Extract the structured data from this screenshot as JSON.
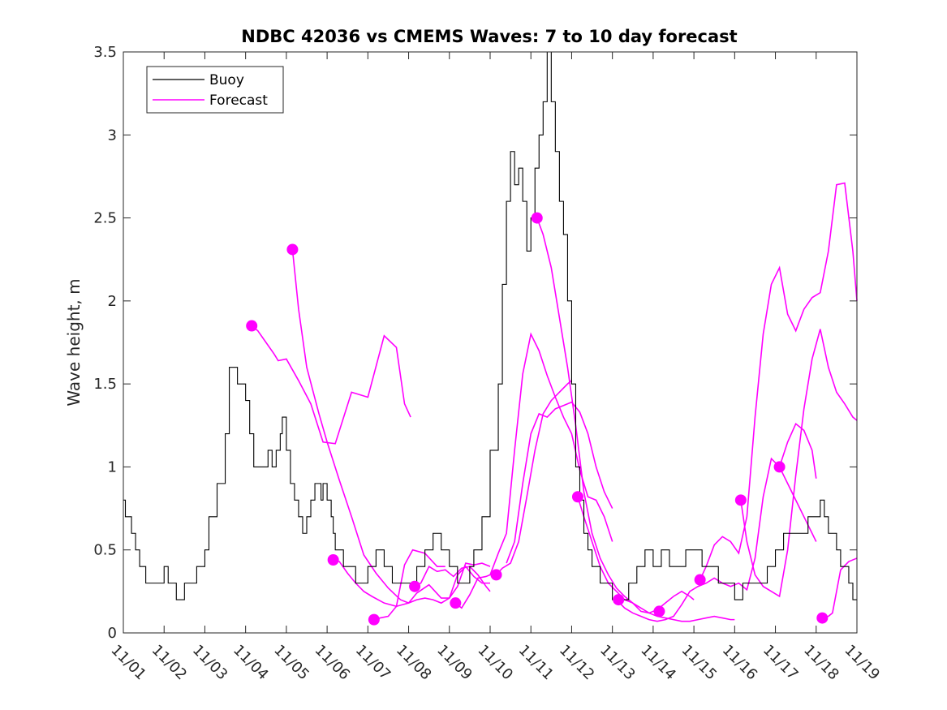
{
  "chart_data": {
    "type": "line",
    "title": "NDBC 42036 vs CMEMS Waves: 7 to 10 day forecast",
    "xlabel": "",
    "ylabel": "Wave height, m",
    "xlim": [
      0,
      18
    ],
    "ylim": [
      0,
      3.5
    ],
    "x_ticks": [
      0,
      1,
      2,
      3,
      4,
      5,
      6,
      7,
      8,
      9,
      10,
      11,
      12,
      13,
      14,
      15,
      16,
      17,
      18
    ],
    "x_tick_labels": [
      "11/01",
      "11/02",
      "11/03",
      "11/04",
      "11/05",
      "11/06",
      "11/07",
      "11/08",
      "11/09",
      "11/10",
      "11/11",
      "11/12",
      "11/13",
      "11/14",
      "11/15",
      "11/16",
      "11/17",
      "11/18",
      "11/19"
    ],
    "y_ticks": [
      0,
      0.5,
      1,
      1.5,
      2,
      2.5,
      3,
      3.5
    ],
    "y_tick_labels": [
      "0",
      "0.5",
      "1",
      "1.5",
      "2",
      "2.5",
      "3",
      "3.5"
    ],
    "legend": {
      "location": "top-left",
      "entries": [
        {
          "label": "Buoy",
          "color": "#000000"
        },
        {
          "label": "Forecast",
          "color": "#ff00ff"
        }
      ]
    },
    "colors": {
      "buoy": "#000000",
      "forecast": "#ff00ff",
      "axes": "#262626"
    },
    "buoy": {
      "name": "Buoy",
      "x": [
        0,
        0.05,
        0.1,
        0.2,
        0.3,
        0.35,
        0.4,
        0.5,
        0.55,
        0.6,
        0.7,
        0.8,
        1,
        1.1,
        1.3,
        1.5,
        1.6,
        1.8,
        2,
        2.1,
        2.3,
        2.5,
        2.6,
        2.8,
        3,
        3.1,
        3.2,
        3.3,
        3.4,
        3.5,
        3.55,
        3.6,
        3.65,
        3.7,
        3.75,
        3.8,
        3.85,
        3.9,
        4,
        4.1,
        4.2,
        4.3,
        4.4,
        4.5,
        4.6,
        4.7,
        4.75,
        4.8,
        4.85,
        4.9,
        5,
        5.1,
        5.15,
        5.2,
        5.3,
        5.4,
        5.5,
        5.6,
        5.7,
        5.8,
        5.9,
        6,
        6.1,
        6.2,
        6.4,
        6.6,
        6.8,
        7,
        7.2,
        7.4,
        7.6,
        7.8,
        8,
        8.2,
        8.4,
        8.5,
        8.6,
        8.8,
        9,
        9.2,
        9.3,
        9.4,
        9.5,
        9.6,
        9.7,
        9.8,
        9.9,
        10,
        10.1,
        10.2,
        10.3,
        10.4,
        10.5,
        10.6,
        10.7,
        10.8,
        10.9,
        11,
        11.1,
        11.2,
        11.3,
        11.4,
        11.5,
        11.6,
        11.7,
        11.8,
        11.9,
        12,
        12.2,
        12.4,
        12.6,
        12.8,
        13,
        13.2,
        13.4,
        13.6,
        13.8,
        14,
        14.2,
        14.4,
        14.6,
        14.8,
        15,
        15.2,
        15.4,
        15.6,
        15.8,
        16,
        16.2,
        16.4,
        16.6,
        16.8,
        17,
        17.1,
        17.2,
        17.3,
        17.4,
        17.5,
        17.6,
        17.7,
        17.8,
        17.9,
        18
      ],
      "values": [
        0.8,
        0.7,
        0.7,
        0.6,
        0.5,
        0.5,
        0.4,
        0.4,
        0.3,
        0.3,
        0.3,
        0.3,
        0.4,
        0.3,
        0.2,
        0.3,
        0.3,
        0.4,
        0.5,
        0.7,
        0.9,
        1.2,
        1.6,
        1.5,
        1.4,
        1.2,
        1.0,
        1.0,
        1.0,
        1.0,
        1.1,
        1.1,
        1.0,
        1.0,
        1.1,
        1.1,
        1.2,
        1.3,
        1.1,
        0.9,
        0.8,
        0.7,
        0.6,
        0.7,
        0.8,
        0.9,
        0.9,
        0.9,
        0.8,
        0.9,
        0.8,
        0.7,
        0.6,
        0.5,
        0.5,
        0.4,
        0.4,
        0.4,
        0.3,
        0.3,
        0.3,
        0.4,
        0.4,
        0.5,
        0.4,
        0.3,
        0.3,
        0.3,
        0.4,
        0.5,
        0.6,
        0.5,
        0.4,
        0.3,
        0.3,
        0.4,
        0.5,
        0.7,
        1.1,
        1.5,
        2.1,
        2.6,
        2.9,
        2.7,
        2.8,
        2.6,
        2.3,
        2.5,
        2.8,
        3.0,
        3.2,
        3.5,
        3.2,
        2.9,
        2.6,
        2.4,
        2.0,
        1.5,
        1.0,
        0.8,
        0.6,
        0.5,
        0.4,
        0.4,
        0.3,
        0.3,
        0.3,
        0.2,
        0.2,
        0.3,
        0.4,
        0.5,
        0.4,
        0.5,
        0.4,
        0.4,
        0.5,
        0.5,
        0.4,
        0.4,
        0.3,
        0.3,
        0.2,
        0.3,
        0.3,
        0.3,
        0.4,
        0.5,
        0.6,
        0.6,
        0.6,
        0.7,
        0.7,
        0.8,
        0.7,
        0.6,
        0.6,
        0.5,
        0.4,
        0.4,
        0.3,
        0.2,
        0.2
      ]
    },
    "forecasts": [
      {
        "name": "Forecast",
        "x": [
          3.15,
          3.3,
          3.5,
          3.7,
          3.8,
          4.0,
          4.3,
          4.6,
          4.9,
          5.2,
          5.6,
          6.0,
          6.4,
          6.7,
          6.9,
          7.05
        ],
        "values": [
          1.85,
          1.82,
          1.75,
          1.68,
          1.64,
          1.65,
          1.52,
          1.38,
          1.15,
          1.14,
          1.45,
          1.42,
          1.79,
          1.72,
          1.38,
          1.3
        ]
      },
      {
        "name": "Forecast",
        "x": [
          4.15,
          4.3,
          4.5,
          4.8,
          5.0,
          5.3,
          5.6,
          5.9,
          6.2,
          6.5,
          6.8,
          7.0,
          7.2,
          7.5,
          7.8,
          8.0,
          8.2,
          8.4,
          8.6,
          8.8,
          9.0
        ],
        "values": [
          2.31,
          1.95,
          1.6,
          1.32,
          1.15,
          0.92,
          0.7,
          0.47,
          0.36,
          0.27,
          0.2,
          0.18,
          0.24,
          0.29,
          0.21,
          0.21,
          0.35,
          0.4,
          0.34,
          0.3,
          0.3
        ]
      },
      {
        "name": "Forecast",
        "x": [
          5.15,
          5.3,
          5.5,
          5.7,
          5.9,
          6.1,
          6.4,
          6.7,
          6.9,
          7.1,
          7.4,
          7.7,
          7.9
        ],
        "values": [
          0.44,
          0.43,
          0.36,
          0.3,
          0.25,
          0.22,
          0.18,
          0.16,
          0.41,
          0.5,
          0.48,
          0.4,
          0.4
        ]
      },
      {
        "name": "Forecast",
        "x": [
          6.15,
          6.3,
          6.5,
          6.7,
          7.0,
          7.2,
          7.4,
          7.6,
          7.8,
          8.0,
          8.2,
          8.4,
          8.6,
          8.8,
          9.0
        ],
        "values": [
          0.08,
          0.09,
          0.1,
          0.16,
          0.18,
          0.2,
          0.21,
          0.2,
          0.18,
          0.21,
          0.28,
          0.42,
          0.41,
          0.42,
          0.4
        ]
      },
      {
        "name": "Forecast",
        "x": [
          7.15,
          7.3,
          7.5,
          7.7,
          7.9,
          8.1,
          8.3,
          8.5,
          8.7,
          8.9,
          9.0
        ],
        "values": [
          0.28,
          0.3,
          0.4,
          0.37,
          0.38,
          0.34,
          0.39,
          0.4,
          0.35,
          0.28,
          0.25
        ]
      },
      {
        "name": "Forecast",
        "x": [
          8.15,
          8.3,
          8.5,
          8.7,
          8.9,
          9.0,
          9.2,
          9.4,
          9.6,
          9.8,
          10.0,
          10.2,
          10.4,
          10.6,
          10.8,
          11.0,
          11.2,
          11.4,
          11.6,
          11.8,
          12.0
        ],
        "values": [
          0.18,
          0.15,
          0.23,
          0.33,
          0.34,
          0.35,
          0.48,
          0.6,
          1.1,
          1.56,
          1.8,
          1.7,
          1.55,
          1.42,
          1.3,
          1.2,
          0.98,
          0.82,
          0.8,
          0.7,
          0.55
        ]
      },
      {
        "name": "Forecast",
        "x": [
          9.15,
          9.3,
          9.5,
          9.7,
          9.9,
          10.1,
          10.3,
          10.5,
          10.7,
          10.9,
          11.0
        ],
        "values": [
          0.35,
          0.39,
          0.42,
          0.55,
          0.82,
          1.1,
          1.32,
          1.4,
          1.45,
          1.5,
          1.52
        ]
      },
      {
        "name": "Forecast",
        "x": [
          9.4,
          9.6,
          9.8,
          10.0,
          10.2,
          10.4,
          10.6,
          10.8,
          11.0,
          11.2,
          11.4,
          11.6,
          11.8,
          12.0
        ],
        "values": [
          0.42,
          0.55,
          0.9,
          1.2,
          1.32,
          1.3,
          1.35,
          1.37,
          1.39,
          1.33,
          1.2,
          1.0,
          0.85,
          0.75
        ]
      },
      {
        "name": "Forecast",
        "x": [
          10.15,
          10.3,
          10.5,
          10.7,
          10.9,
          11.1,
          11.3,
          11.5,
          11.7,
          11.9,
          12.1,
          12.3,
          12.5,
          12.7,
          12.9,
          13.1,
          13.3,
          13.5,
          13.7,
          13.9,
          14.1,
          14.3,
          14.5,
          14.7,
          14.9,
          15.0
        ],
        "values": [
          2.5,
          2.4,
          2.2,
          1.9,
          1.6,
          1.25,
          0.85,
          0.6,
          0.45,
          0.35,
          0.27,
          0.22,
          0.18,
          0.15,
          0.12,
          0.1,
          0.09,
          0.08,
          0.07,
          0.07,
          0.08,
          0.09,
          0.1,
          0.09,
          0.08,
          0.08
        ]
      },
      {
        "name": "Forecast",
        "x": [
          11.15,
          11.3,
          11.5,
          11.7,
          11.9,
          12.1,
          12.3,
          12.5,
          12.7,
          12.9,
          13.1,
          13.3,
          13.5,
          13.7,
          13.9,
          14.0
        ],
        "values": [
          0.82,
          0.7,
          0.55,
          0.4,
          0.3,
          0.25,
          0.2,
          0.18,
          0.13,
          0.12,
          0.14,
          0.18,
          0.22,
          0.25,
          0.22,
          0.2
        ]
      },
      {
        "name": "Forecast",
        "x": [
          12.1,
          12.3,
          12.5,
          12.7,
          12.9,
          13.1,
          13.3,
          13.5,
          13.7,
          13.9,
          14.1,
          14.3,
          14.5,
          14.7,
          14.9,
          15.1,
          15.3,
          15.5,
          15.7,
          15.9,
          16.1,
          16.3,
          16.5,
          16.7,
          16.9,
          17.0
        ],
        "values": [
          0.2,
          0.15,
          0.12,
          0.1,
          0.08,
          0.07,
          0.08,
          0.1,
          0.17,
          0.25,
          0.28,
          0.3,
          0.33,
          0.3,
          0.28,
          0.3,
          0.26,
          0.45,
          0.82,
          1.05,
          1.0,
          0.9,
          0.8,
          0.7,
          0.6,
          0.55
        ]
      },
      {
        "name": "Forecast",
        "x": [
          14.15,
          14.3,
          14.5,
          14.7,
          14.9,
          15.1,
          15.3,
          15.5,
          15.7,
          15.9,
          16.1,
          16.3,
          16.5,
          16.7,
          16.9,
          17.1,
          17.3,
          17.5,
          17.7,
          17.9,
          18.0
        ],
        "values": [
          0.32,
          0.4,
          0.53,
          0.58,
          0.55,
          0.48,
          0.7,
          1.3,
          1.8,
          2.1,
          2.2,
          1.92,
          1.82,
          1.95,
          2.02,
          2.05,
          2.3,
          2.7,
          2.71,
          2.3,
          2.0
        ]
      },
      {
        "name": "Forecast",
        "x": [
          15.15,
          15.3,
          15.5,
          15.7,
          15.9,
          16.1,
          16.3,
          16.5,
          16.7,
          16.9,
          17.1,
          17.3,
          17.5,
          17.7,
          17.9,
          18.0
        ],
        "values": [
          0.8,
          0.55,
          0.35,
          0.28,
          0.25,
          0.22,
          0.5,
          0.95,
          1.35,
          1.65,
          1.83,
          1.6,
          1.45,
          1.38,
          1.3,
          1.28
        ]
      },
      {
        "name": "Forecast",
        "x": [
          16.1,
          16.3,
          16.5,
          16.7,
          16.9,
          17.0
        ],
        "values": [
          1.0,
          1.15,
          1.26,
          1.22,
          1.1,
          0.93
        ]
      },
      {
        "name": "Forecast",
        "x": [
          17.15,
          17.3,
          17.4,
          17.5,
          17.6,
          17.8,
          18.0
        ],
        "values": [
          0.09,
          0.1,
          0.12,
          0.25,
          0.38,
          0.43,
          0.45
        ]
      }
    ],
    "markers": {
      "x": [
        3.15,
        4.15,
        5.15,
        6.15,
        7.15,
        8.15,
        9.15,
        10.15,
        11.15,
        12.15,
        13.15,
        14.15,
        15.15,
        16.1,
        17.15
      ],
      "values": [
        1.85,
        2.31,
        0.44,
        0.08,
        0.28,
        0.18,
        0.35,
        2.5,
        0.82,
        0.2,
        0.13,
        0.32,
        0.8,
        1.0,
        0.09
      ]
    }
  }
}
